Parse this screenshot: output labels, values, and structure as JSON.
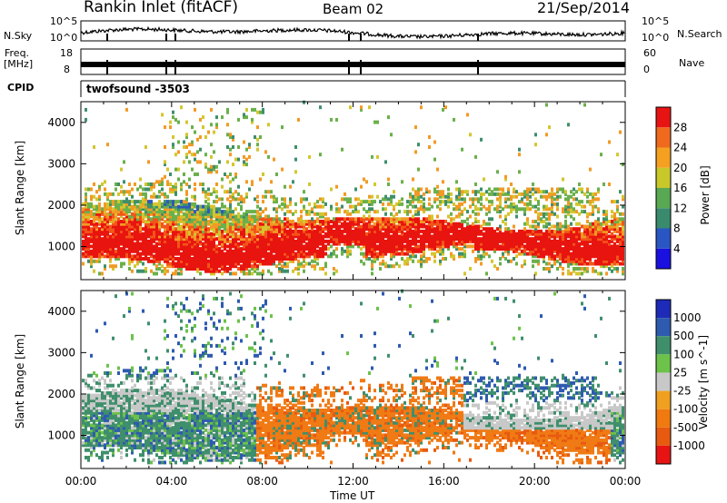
{
  "header": {
    "station": "Rankin Inlet (fitACF)",
    "beam": "Beam 02",
    "date": "21/Sep/2014"
  },
  "side_labels": {
    "nsky": "N.Sky",
    "nsearch": "N.Search",
    "freq": "Freq.",
    "freq_unit": "[MHz]",
    "nave": "Nave",
    "cpid": "CPID",
    "cpid_value": "twofsound -3503"
  },
  "strip_ticks": {
    "nsky_left": [
      "10^5",
      "10^0"
    ],
    "nsky_right": [
      "10^5",
      "10^0"
    ],
    "freq_left": [
      "18",
      "8"
    ],
    "nave_right": [
      "60",
      "0"
    ]
  },
  "chart_data": [
    {
      "type": "heatmap",
      "name": "power",
      "ylabel": "Slant Range [km]",
      "ylim": [
        200,
        4500
      ],
      "yticks": [
        "1000",
        "2000",
        "3000",
        "4000"
      ],
      "colorbar_label": "Power [dB]",
      "colorbar_ticks": [
        "4",
        "8",
        "12",
        "16",
        "20",
        "24",
        "28"
      ],
      "colorbar_colors": [
        "#1a10e0",
        "#2a56c4",
        "#3a8a6e",
        "#59a853",
        "#c8c82a",
        "#f5a020",
        "#f06a1e",
        "#e81414"
      ],
      "colors": [
        "#e8140f",
        "#f2551a",
        "#f29a25",
        "#d4c62e",
        "#6ab04b",
        "#3f8f6c",
        "#2e5ab8"
      ]
    },
    {
      "type": "heatmap",
      "name": "velocity",
      "ylabel": "Slant Range [km]",
      "ylim": [
        200,
        4500
      ],
      "yticks": [
        "1000",
        "2000",
        "3000",
        "4000"
      ],
      "colorbar_label": "Velocity [m s^-1]",
      "colorbar_ticks": [
        "1000",
        "500",
        "100",
        "25",
        "-25",
        "-100",
        "-500",
        "-1000"
      ],
      "colorbar_colors": [
        "#1e2ab8",
        "#2e5ab0",
        "#3f8f6c",
        "#6cc24a",
        "#c8c8c8",
        "#f0a020",
        "#f07a10",
        "#e85a10",
        "#e81414"
      ],
      "colors": [
        "#c8c8c8",
        "#3f8f6c",
        "#f07a14",
        "#2e5ab0",
        "#6cc24a",
        "#e85a10"
      ]
    }
  ],
  "time_axis": {
    "xlabel": "Time UT",
    "ticks": [
      "00:00",
      "04:00",
      "08:00",
      "12:00",
      "16:00",
      "20:00",
      "00:00"
    ]
  }
}
